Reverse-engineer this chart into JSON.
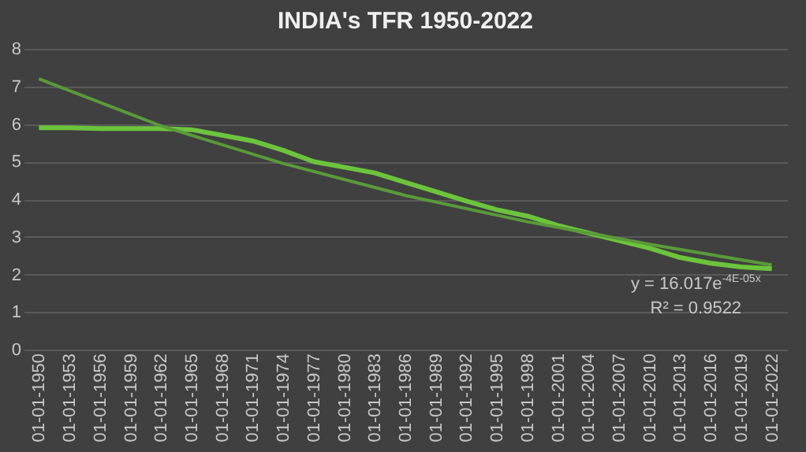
{
  "chart_data": {
    "type": "line",
    "title": "INDIA's TFR 1950-2022",
    "categories": [
      "01-01-1950",
      "01-01-1953",
      "01-01-1956",
      "01-01-1959",
      "01-01-1962",
      "01-01-1965",
      "01-01-1968",
      "01-01-1971",
      "01-01-1974",
      "01-01-1977",
      "01-01-1980",
      "01-01-1983",
      "01-01-1986",
      "01-01-1989",
      "01-01-1992",
      "01-01-1995",
      "01-01-1998",
      "01-01-2001",
      "01-01-2004",
      "01-01-2007",
      "01-01-2010",
      "01-01-2013",
      "01-01-2016",
      "01-01-2019",
      "01-01-2022"
    ],
    "series": [
      {
        "color": "#6cc43c",
        "values": [
          5.9,
          5.9,
          5.88,
          5.88,
          5.88,
          5.85,
          5.7,
          5.55,
          5.3,
          5.0,
          4.85,
          4.7,
          4.45,
          4.2,
          3.95,
          3.72,
          3.55,
          3.3,
          3.1,
          2.9,
          2.7,
          2.45,
          2.3,
          2.2,
          2.15
        ]
      },
      {
        "type": "line",
        "color": "#5a9a3a",
        "x": [
          "01-01-1950",
          "01-01-1962",
          "01-01-1974",
          "01-01-1986",
          "01-01-1998",
          "01-01-2010",
          "01-01-2022"
        ],
        "values": [
          7.2,
          5.95,
          4.95,
          4.1,
          3.4,
          2.8,
          2.25
        ]
      }
    ],
    "ylim": [
      0,
      8
    ],
    "yticks": [
      0,
      1,
      2,
      3,
      4,
      5,
      6,
      7,
      8
    ],
    "grid": "y",
    "annotations": [
      "y = 16.017e$^{-4E-05x}$",
      "R² = 0.9522"
    ]
  }
}
